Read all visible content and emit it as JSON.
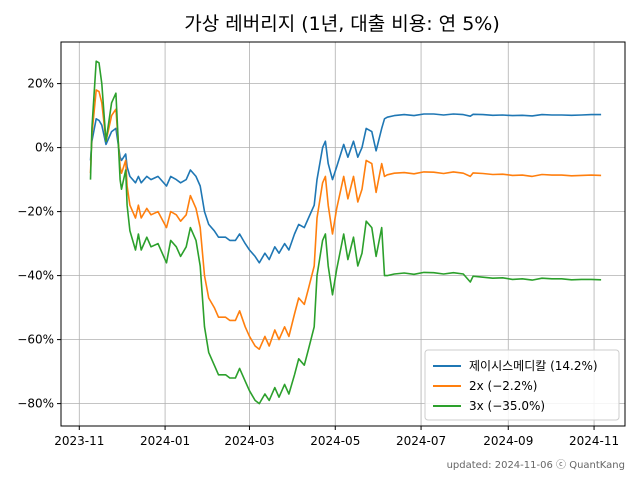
{
  "chart_data": {
    "type": "line",
    "title": "가상 레버리지 (1년, 대출 비용: 연 5%)",
    "xlabel": "",
    "ylabel": "",
    "x_ticks": [
      "2023-11",
      "2024-01",
      "2024-03",
      "2024-05",
      "2024-07",
      "2024-09",
      "2024-11"
    ],
    "y_ticks": [
      "20%",
      "0%",
      "-20%",
      "-40%",
      "-60%",
      "-80%"
    ],
    "xlim": [
      "2023-10-19",
      "2024-11-23"
    ],
    "ylim": [
      -87,
      33
    ],
    "grid": true,
    "legend_position": "lower-right",
    "footer": "updated: 2024-11-06 ⓒ QuantKang",
    "series": [
      {
        "name": "제이시스메디칼 (14.2%)",
        "color": "#1f77b4",
        "points": [
          [
            "2023-11-09",
            -4
          ],
          [
            "2023-11-10",
            2
          ],
          [
            "2023-11-13",
            9
          ],
          [
            "2023-11-15",
            8.5
          ],
          [
            "2023-11-17",
            7
          ],
          [
            "2023-11-20",
            1
          ],
          [
            "2023-11-22",
            3
          ],
          [
            "2023-11-24",
            5
          ],
          [
            "2023-11-27",
            6
          ],
          [
            "2023-11-28",
            3
          ],
          [
            "2023-11-30",
            -3
          ],
          [
            "2023-12-01",
            -4
          ],
          [
            "2023-12-04",
            -2
          ],
          [
            "2023-12-05",
            -6
          ],
          [
            "2023-12-07",
            -9
          ],
          [
            "2023-12-11",
            -11
          ],
          [
            "2023-12-13",
            -9
          ],
          [
            "2023-12-15",
            -11
          ],
          [
            "2023-12-19",
            -9
          ],
          [
            "2023-12-22",
            -10
          ],
          [
            "2023-12-27",
            -9
          ],
          [
            "2024-01-02",
            -12
          ],
          [
            "2024-01-05",
            -9
          ],
          [
            "2024-01-09",
            -10
          ],
          [
            "2024-01-12",
            -11
          ],
          [
            "2024-01-16",
            -10
          ],
          [
            "2024-01-19",
            -7
          ],
          [
            "2024-01-23",
            -9
          ],
          [
            "2024-01-26",
            -12
          ],
          [
            "2024-01-29",
            -20
          ],
          [
            "2024-02-01",
            -24
          ],
          [
            "2024-02-05",
            -26
          ],
          [
            "2024-02-08",
            -28
          ],
          [
            "2024-02-13",
            -28
          ],
          [
            "2024-02-16",
            -29
          ],
          [
            "2024-02-20",
            -29
          ],
          [
            "2024-02-23",
            -27
          ],
          [
            "2024-02-27",
            -30
          ],
          [
            "2024-03-01",
            -32
          ],
          [
            "2024-03-05",
            -34
          ],
          [
            "2024-03-08",
            -36
          ],
          [
            "2024-03-12",
            -33
          ],
          [
            "2024-03-15",
            -35
          ],
          [
            "2024-03-19",
            -31
          ],
          [
            "2024-03-22",
            -33
          ],
          [
            "2024-03-26",
            -30
          ],
          [
            "2024-03-29",
            -32
          ],
          [
            "2024-04-02",
            -27
          ],
          [
            "2024-04-05",
            -24
          ],
          [
            "2024-04-09",
            -25
          ],
          [
            "2024-04-12",
            -22
          ],
          [
            "2024-04-16",
            -18
          ],
          [
            "2024-04-18",
            -10
          ],
          [
            "2024-04-22",
            0
          ],
          [
            "2024-04-24",
            2
          ],
          [
            "2024-04-26",
            -5
          ],
          [
            "2024-04-29",
            -10
          ],
          [
            "2024-05-02",
            -6
          ],
          [
            "2024-05-07",
            1
          ],
          [
            "2024-05-10",
            -3
          ],
          [
            "2024-05-14",
            2
          ],
          [
            "2024-05-17",
            -3
          ],
          [
            "2024-05-20",
            0
          ],
          [
            "2024-05-23",
            6
          ],
          [
            "2024-05-27",
            5
          ],
          [
            "2024-05-30",
            -1
          ],
          [
            "2024-06-03",
            6
          ],
          [
            "2024-06-05",
            9
          ],
          [
            "2024-06-07",
            9.5
          ],
          [
            "2024-06-12",
            10
          ],
          [
            "2024-06-19",
            10.3
          ],
          [
            "2024-06-26",
            10
          ],
          [
            "2024-07-03",
            10.5
          ],
          [
            "2024-07-10",
            10.5
          ],
          [
            "2024-07-17",
            10.2
          ],
          [
            "2024-07-24",
            10.5
          ],
          [
            "2024-07-31",
            10.3
          ],
          [
            "2024-08-05",
            9.8
          ],
          [
            "2024-08-07",
            10.4
          ],
          [
            "2024-08-14",
            10.3
          ],
          [
            "2024-08-21",
            10.1
          ],
          [
            "2024-08-28",
            10.2
          ],
          [
            "2024-09-04",
            10
          ],
          [
            "2024-09-11",
            10.1
          ],
          [
            "2024-09-18",
            9.9
          ],
          [
            "2024-09-25",
            10.3
          ],
          [
            "2024-10-02",
            10.2
          ],
          [
            "2024-10-09",
            10.2
          ],
          [
            "2024-10-16",
            10.1
          ],
          [
            "2024-10-23",
            10.2
          ],
          [
            "2024-10-30",
            10.3
          ],
          [
            "2024-11-06",
            10.3
          ]
        ]
      },
      {
        "name": "2x (−2.2%)",
        "color": "#ff7f0e",
        "points": [
          [
            "2023-11-09",
            -8
          ],
          [
            "2023-11-10",
            4
          ],
          [
            "2023-11-13",
            18
          ],
          [
            "2023-11-15",
            17.5
          ],
          [
            "2023-11-17",
            14
          ],
          [
            "2023-11-20",
            2
          ],
          [
            "2023-11-22",
            6
          ],
          [
            "2023-11-24",
            10
          ],
          [
            "2023-11-27",
            12
          ],
          [
            "2023-11-28",
            6
          ],
          [
            "2023-11-30",
            -6
          ],
          [
            "2023-12-01",
            -8
          ],
          [
            "2023-12-04",
            -4
          ],
          [
            "2023-12-05",
            -12
          ],
          [
            "2023-12-07",
            -18
          ],
          [
            "2023-12-11",
            -22
          ],
          [
            "2023-12-13",
            -18
          ],
          [
            "2023-12-15",
            -22
          ],
          [
            "2023-12-19",
            -19
          ],
          [
            "2023-12-22",
            -21
          ],
          [
            "2023-12-27",
            -20
          ],
          [
            "2024-01-02",
            -25
          ],
          [
            "2024-01-05",
            -20
          ],
          [
            "2024-01-09",
            -21
          ],
          [
            "2024-01-12",
            -23
          ],
          [
            "2024-01-16",
            -21
          ],
          [
            "2024-01-19",
            -15
          ],
          [
            "2024-01-23",
            -19
          ],
          [
            "2024-01-26",
            -25
          ],
          [
            "2024-01-29",
            -40
          ],
          [
            "2024-02-01",
            -47
          ],
          [
            "2024-02-05",
            -50
          ],
          [
            "2024-02-08",
            -53
          ],
          [
            "2024-02-13",
            -53
          ],
          [
            "2024-02-16",
            -54
          ],
          [
            "2024-02-20",
            -54
          ],
          [
            "2024-02-23",
            -51
          ],
          [
            "2024-02-27",
            -56
          ],
          [
            "2024-03-01",
            -59
          ],
          [
            "2024-03-05",
            -62
          ],
          [
            "2024-03-08",
            -63
          ],
          [
            "2024-03-12",
            -59
          ],
          [
            "2024-03-15",
            -62
          ],
          [
            "2024-03-19",
            -57
          ],
          [
            "2024-03-22",
            -60
          ],
          [
            "2024-03-26",
            -56
          ],
          [
            "2024-03-29",
            -59
          ],
          [
            "2024-04-02",
            -52
          ],
          [
            "2024-04-05",
            -47
          ],
          [
            "2024-04-09",
            -49
          ],
          [
            "2024-04-12",
            -44
          ],
          [
            "2024-04-16",
            -37
          ],
          [
            "2024-04-18",
            -22
          ],
          [
            "2024-04-22",
            -11
          ],
          [
            "2024-04-24",
            -9
          ],
          [
            "2024-04-26",
            -18
          ],
          [
            "2024-04-29",
            -27
          ],
          [
            "2024-05-02",
            -19
          ],
          [
            "2024-05-07",
            -9
          ],
          [
            "2024-05-10",
            -16
          ],
          [
            "2024-05-14",
            -9
          ],
          [
            "2024-05-17",
            -17
          ],
          [
            "2024-05-20",
            -13
          ],
          [
            "2024-05-23",
            -4
          ],
          [
            "2024-05-27",
            -5
          ],
          [
            "2024-05-30",
            -14
          ],
          [
            "2024-06-03",
            -5
          ],
          [
            "2024-06-05",
            -9
          ],
          [
            "2024-06-07",
            -8.5
          ],
          [
            "2024-06-12",
            -8
          ],
          [
            "2024-06-19",
            -7.8
          ],
          [
            "2024-06-26",
            -8.2
          ],
          [
            "2024-07-03",
            -7.6
          ],
          [
            "2024-07-10",
            -7.7
          ],
          [
            "2024-07-17",
            -8.1
          ],
          [
            "2024-07-24",
            -7.6
          ],
          [
            "2024-07-31",
            -8
          ],
          [
            "2024-08-05",
            -9
          ],
          [
            "2024-08-07",
            -7.9
          ],
          [
            "2024-08-14",
            -8.1
          ],
          [
            "2024-08-21",
            -8.4
          ],
          [
            "2024-08-28",
            -8.3
          ],
          [
            "2024-09-04",
            -8.7
          ],
          [
            "2024-09-11",
            -8.6
          ],
          [
            "2024-09-18",
            -9
          ],
          [
            "2024-09-25",
            -8.4
          ],
          [
            "2024-10-02",
            -8.6
          ],
          [
            "2024-10-09",
            -8.6
          ],
          [
            "2024-10-16",
            -8.8
          ],
          [
            "2024-10-23",
            -8.7
          ],
          [
            "2024-10-30",
            -8.6
          ],
          [
            "2024-11-06",
            -8.7
          ]
        ]
      },
      {
        "name": "3x (−35.0%)",
        "color": "#2ca02c",
        "points": [
          [
            "2023-11-09",
            -10
          ],
          [
            "2023-11-10",
            6
          ],
          [
            "2023-11-13",
            27
          ],
          [
            "2023-11-15",
            26.5
          ],
          [
            "2023-11-17",
            20
          ],
          [
            "2023-11-20",
            2
          ],
          [
            "2023-11-22",
            8
          ],
          [
            "2023-11-24",
            14
          ],
          [
            "2023-11-27",
            17
          ],
          [
            "2023-11-28",
            8
          ],
          [
            "2023-11-30",
            -10
          ],
          [
            "2023-12-01",
            -13
          ],
          [
            "2023-12-04",
            -7
          ],
          [
            "2023-12-05",
            -18
          ],
          [
            "2023-12-07",
            -26
          ],
          [
            "2023-12-11",
            -32
          ],
          [
            "2023-12-13",
            -27
          ],
          [
            "2023-12-15",
            -32
          ],
          [
            "2023-12-19",
            -28
          ],
          [
            "2023-12-22",
            -31
          ],
          [
            "2023-12-27",
            -30
          ],
          [
            "2024-01-02",
            -36
          ],
          [
            "2024-01-05",
            -29
          ],
          [
            "2024-01-09",
            -31
          ],
          [
            "2024-01-12",
            -34
          ],
          [
            "2024-01-16",
            -31
          ],
          [
            "2024-01-19",
            -25
          ],
          [
            "2024-01-23",
            -29
          ],
          [
            "2024-01-26",
            -37
          ],
          [
            "2024-01-29",
            -56
          ],
          [
            "2024-02-01",
            -64
          ],
          [
            "2024-02-05",
            -68
          ],
          [
            "2024-02-08",
            -71
          ],
          [
            "2024-02-13",
            -71
          ],
          [
            "2024-02-16",
            -72
          ],
          [
            "2024-02-20",
            -72
          ],
          [
            "2024-02-23",
            -69
          ],
          [
            "2024-02-27",
            -73
          ],
          [
            "2024-03-01",
            -76
          ],
          [
            "2024-03-05",
            -79
          ],
          [
            "2024-03-08",
            -80
          ],
          [
            "2024-03-12",
            -77
          ],
          [
            "2024-03-15",
            -79
          ],
          [
            "2024-03-19",
            -75
          ],
          [
            "2024-03-22",
            -78
          ],
          [
            "2024-03-26",
            -74
          ],
          [
            "2024-03-29",
            -77
          ],
          [
            "2024-04-02",
            -71
          ],
          [
            "2024-04-05",
            -66
          ],
          [
            "2024-04-09",
            -68
          ],
          [
            "2024-04-12",
            -63
          ],
          [
            "2024-04-16",
            -56
          ],
          [
            "2024-04-18",
            -40
          ],
          [
            "2024-04-22",
            -29
          ],
          [
            "2024-04-24",
            -27
          ],
          [
            "2024-04-26",
            -37
          ],
          [
            "2024-04-29",
            -46
          ],
          [
            "2024-05-02",
            -38
          ],
          [
            "2024-05-07",
            -27
          ],
          [
            "2024-05-10",
            -35
          ],
          [
            "2024-05-14",
            -28
          ],
          [
            "2024-05-17",
            -37
          ],
          [
            "2024-05-20",
            -33
          ],
          [
            "2024-05-23",
            -23
          ],
          [
            "2024-05-27",
            -25
          ],
          [
            "2024-05-30",
            -34
          ],
          [
            "2024-06-03",
            -25
          ],
          [
            "2024-06-05",
            -40
          ],
          [
            "2024-06-07",
            -40
          ],
          [
            "2024-06-12",
            -39.5
          ],
          [
            "2024-06-19",
            -39.2
          ],
          [
            "2024-06-26",
            -39.6
          ],
          [
            "2024-07-03",
            -39
          ],
          [
            "2024-07-10",
            -39.1
          ],
          [
            "2024-07-17",
            -39.5
          ],
          [
            "2024-07-24",
            -39.1
          ],
          [
            "2024-07-31",
            -39.5
          ],
          [
            "2024-08-05",
            -42
          ],
          [
            "2024-08-07",
            -40.2
          ],
          [
            "2024-08-14",
            -40.5
          ],
          [
            "2024-08-21",
            -40.8
          ],
          [
            "2024-08-28",
            -40.7
          ],
          [
            "2024-09-04",
            -41.2
          ],
          [
            "2024-09-11",
            -41
          ],
          [
            "2024-09-18",
            -41.4
          ],
          [
            "2024-09-25",
            -40.8
          ],
          [
            "2024-10-02",
            -41
          ],
          [
            "2024-10-09",
            -41
          ],
          [
            "2024-10-16",
            -41.3
          ],
          [
            "2024-10-23",
            -41.2
          ],
          [
            "2024-10-30",
            -41.2
          ],
          [
            "2024-11-06",
            -41.3
          ]
        ]
      }
    ]
  }
}
